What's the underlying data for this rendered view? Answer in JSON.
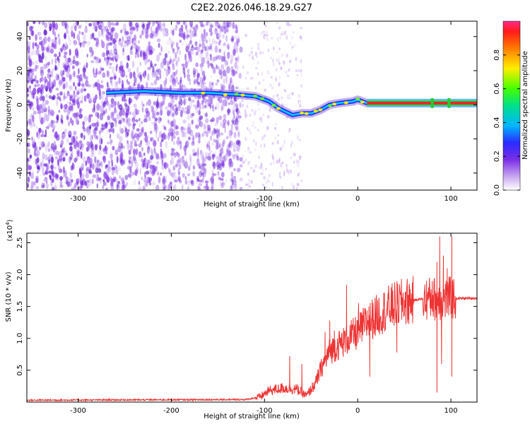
{
  "title": "C2E2.2026.046.18.29.G27",
  "colors": {
    "line": "#ee3333",
    "spectrum_purple": "#7a2ee6",
    "band_red": "#ee2222",
    "band_green": "#22cc33"
  },
  "chart_data": [
    {
      "type": "heatmap",
      "xlabel": "Height of straight line (km)",
      "ylabel": "Frequency (Hz)",
      "xlim": [
        -355,
        128
      ],
      "ylim": [
        -50,
        49
      ],
      "xticks": [
        -300,
        -200,
        -100,
        0,
        100
      ],
      "xtick_labels": [
        "-300",
        "-200",
        "-100",
        "0",
        "100"
      ],
      "yticks": [
        -40,
        -20,
        0,
        20,
        40
      ],
      "ytick_labels": [
        "-40",
        "-20",
        "0",
        "20",
        "40"
      ],
      "colorbar": {
        "label": "Normalized spectral amplitude",
        "ticks": [
          0.0,
          0.2,
          0.4,
          0.6,
          0.8
        ],
        "tick_labels": [
          "0.0",
          "0.2",
          "0.4",
          "0.6",
          "0.8"
        ],
        "range": [
          0,
          1
        ]
      },
      "ridge": [
        {
          "x": -270,
          "y": 7
        },
        {
          "x": -230,
          "y": 8
        },
        {
          "x": -190,
          "y": 7
        },
        {
          "x": -160,
          "y": 7
        },
        {
          "x": -130,
          "y": 6
        },
        {
          "x": -110,
          "y": 5
        },
        {
          "x": -95,
          "y": 2
        },
        {
          "x": -85,
          "y": -2
        },
        {
          "x": -70,
          "y": -6
        },
        {
          "x": -60,
          "y": -5
        },
        {
          "x": -50,
          "y": -5
        },
        {
          "x": -40,
          "y": -3
        },
        {
          "x": -30,
          "y": 0
        },
        {
          "x": -20,
          "y": 1
        },
        {
          "x": -5,
          "y": 2
        },
        {
          "x": 0,
          "y": 3
        },
        {
          "x": 10,
          "y": 1
        },
        {
          "x": 128,
          "y": 1
        }
      ],
      "dense_noise_until": -125,
      "sparse_noise_until": -60
    },
    {
      "type": "line",
      "xlabel": "Height of straight line (km)",
      "ylabel": "SNR (10 * v/v)",
      "scale_label": "(x10",
      "scale_exponent": "4",
      "scale_suffix": ")",
      "xlim": [
        -355,
        128
      ],
      "ylim": [
        0,
        2.65
      ],
      "xticks": [
        -300,
        -200,
        -100,
        0,
        100
      ],
      "xtick_labels": [
        "-300",
        "-200",
        "-100",
        "0",
        "100"
      ],
      "yticks": [
        0.5,
        1.0,
        1.5,
        2.0,
        2.5
      ],
      "ytick_labels": [
        "0.5",
        "1.0",
        "1.5",
        "2.0",
        "2.5"
      ],
      "envelope": [
        {
          "x": -355,
          "y": 0.03
        },
        {
          "x": -120,
          "y": 0.04
        },
        {
          "x": -105,
          "y": 0.08
        },
        {
          "x": -95,
          "y": 0.18
        },
        {
          "x": -80,
          "y": 0.22
        },
        {
          "x": -65,
          "y": 0.2
        },
        {
          "x": -55,
          "y": 0.1
        },
        {
          "x": -45,
          "y": 0.3
        },
        {
          "x": -40,
          "y": 0.5
        },
        {
          "x": -30,
          "y": 0.8
        },
        {
          "x": -20,
          "y": 0.9
        },
        {
          "x": -10,
          "y": 1.0
        },
        {
          "x": 0,
          "y": 1.1
        },
        {
          "x": 10,
          "y": 1.25
        },
        {
          "x": 20,
          "y": 1.35
        },
        {
          "x": 30,
          "y": 1.45
        },
        {
          "x": 40,
          "y": 1.52
        },
        {
          "x": 50,
          "y": 1.57
        },
        {
          "x": 60,
          "y": 1.6
        },
        {
          "x": 70,
          "y": 1.62
        },
        {
          "x": 128,
          "y": 1.63
        }
      ],
      "spikes": [
        {
          "x": -73,
          "y": 0.72
        },
        {
          "x": -60,
          "y": 0.6
        },
        {
          "x": -35,
          "y": 1.1
        },
        {
          "x": -30,
          "y": 1.28
        },
        {
          "x": -25,
          "y": 1.12
        },
        {
          "x": -12,
          "y": 1.84
        },
        {
          "x": 1,
          "y": 1.55
        },
        {
          "x": 12,
          "y": 1.5
        },
        {
          "x": 76,
          "y": 1.8
        },
        {
          "x": 80,
          "y": 1.9
        },
        {
          "x": 85,
          "y": 2.2
        },
        {
          "x": 88,
          "y": 2.6
        },
        {
          "x": 92,
          "y": 2.3
        },
        {
          "x": 96,
          "y": 2.1
        },
        {
          "x": 101,
          "y": 2.6
        }
      ],
      "dips": [
        {
          "x": 13,
          "y": 0.4
        },
        {
          "x": 42,
          "y": 0.78
        },
        {
          "x": 85,
          "y": 0.15
        },
        {
          "x": 90,
          "y": 0.6
        },
        {
          "x": 101,
          "y": 0.4
        }
      ]
    }
  ]
}
